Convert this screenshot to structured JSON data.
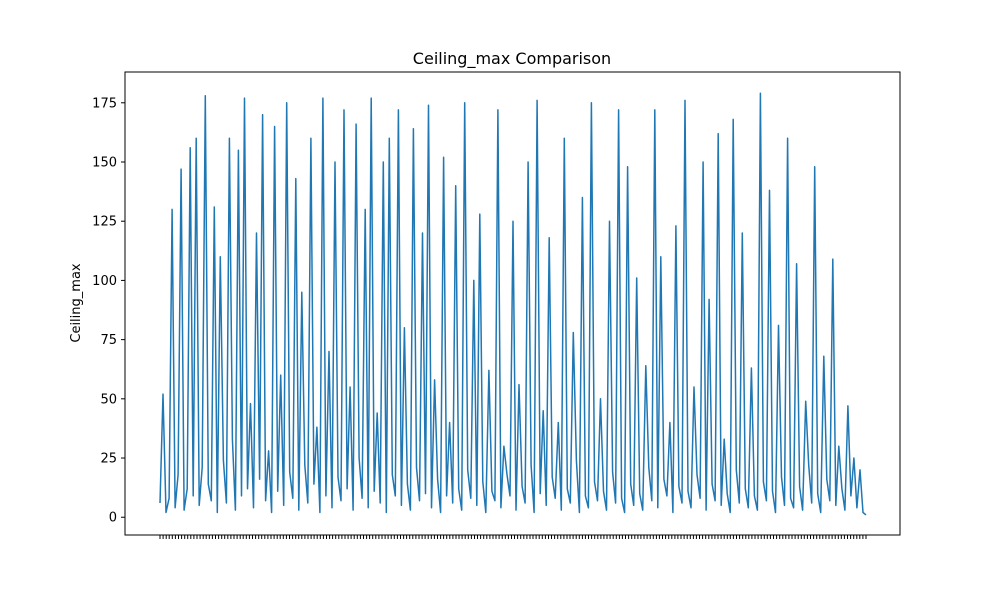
{
  "chart_data": {
    "type": "line",
    "title": "Ceiling_max Comparison",
    "xlabel": "",
    "ylabel": "Ceiling_max",
    "ylim": [
      -7.5,
      188
    ],
    "yticks": [
      0,
      25,
      50,
      75,
      100,
      125,
      150,
      175
    ],
    "ytick_labels": [
      "0",
      "25",
      "50",
      "75",
      "100",
      "125",
      "150",
      "175"
    ],
    "grid": false,
    "legend": "none",
    "series_color": "#1f77b4",
    "series": [
      {
        "note_visible_only": "dense categorical line; x tick labels rendered but unreadable",
        "values": [
          6,
          52,
          2,
          8,
          130,
          4,
          18,
          147,
          3,
          12,
          156,
          9,
          160,
          5,
          21,
          178,
          14,
          7,
          131,
          2,
          110,
          24,
          6,
          160,
          33,
          3,
          155,
          9,
          177,
          12,
          48,
          4,
          120,
          16,
          170,
          7,
          28,
          2,
          165,
          11,
          60,
          5,
          175,
          19,
          8,
          143,
          3,
          95,
          22,
          6,
          160,
          14,
          38,
          2,
          177,
          9,
          70,
          4,
          150,
          17,
          7,
          172,
          12,
          55,
          3,
          166,
          25,
          8,
          130,
          4,
          177,
          11,
          44,
          6,
          150,
          2,
          160,
          18,
          9,
          172,
          5,
          80,
          14,
          3,
          164,
          21,
          7,
          120,
          10,
          174,
          4,
          58,
          16,
          2,
          152,
          9,
          40,
          6,
          140,
          12,
          3,
          175,
          20,
          8,
          100,
          5,
          128,
          15,
          2,
          62,
          11,
          7,
          172,
          4,
          30,
          18,
          9,
          125,
          3,
          56,
          13,
          6,
          150,
          22,
          2,
          176,
          10,
          45,
          5,
          118,
          17,
          8,
          40,
          3,
          160,
          12,
          6,
          78,
          24,
          2,
          135,
          9,
          4,
          175,
          15,
          7,
          50,
          11,
          3,
          125,
          19,
          6,
          172,
          8,
          2,
          148,
          14,
          5,
          101,
          10,
          3,
          64,
          21,
          7,
          172,
          4,
          110,
          16,
          9,
          40,
          2,
          123,
          13,
          6,
          176,
          11,
          4,
          55,
          18,
          8,
          150,
          3,
          92,
          14,
          7,
          162,
          5,
          33,
          10,
          2,
          168,
          20,
          6,
          120,
          12,
          4,
          63,
          9,
          3,
          179,
          15,
          7,
          138,
          11,
          2,
          81,
          17,
          5,
          160,
          8,
          4,
          107,
          13,
          3,
          49,
          22,
          6,
          148,
          10,
          2,
          68,
          16,
          7,
          109,
          5,
          30,
          12,
          3,
          47,
          9,
          25,
          4,
          20,
          2,
          1
        ]
      }
    ]
  }
}
